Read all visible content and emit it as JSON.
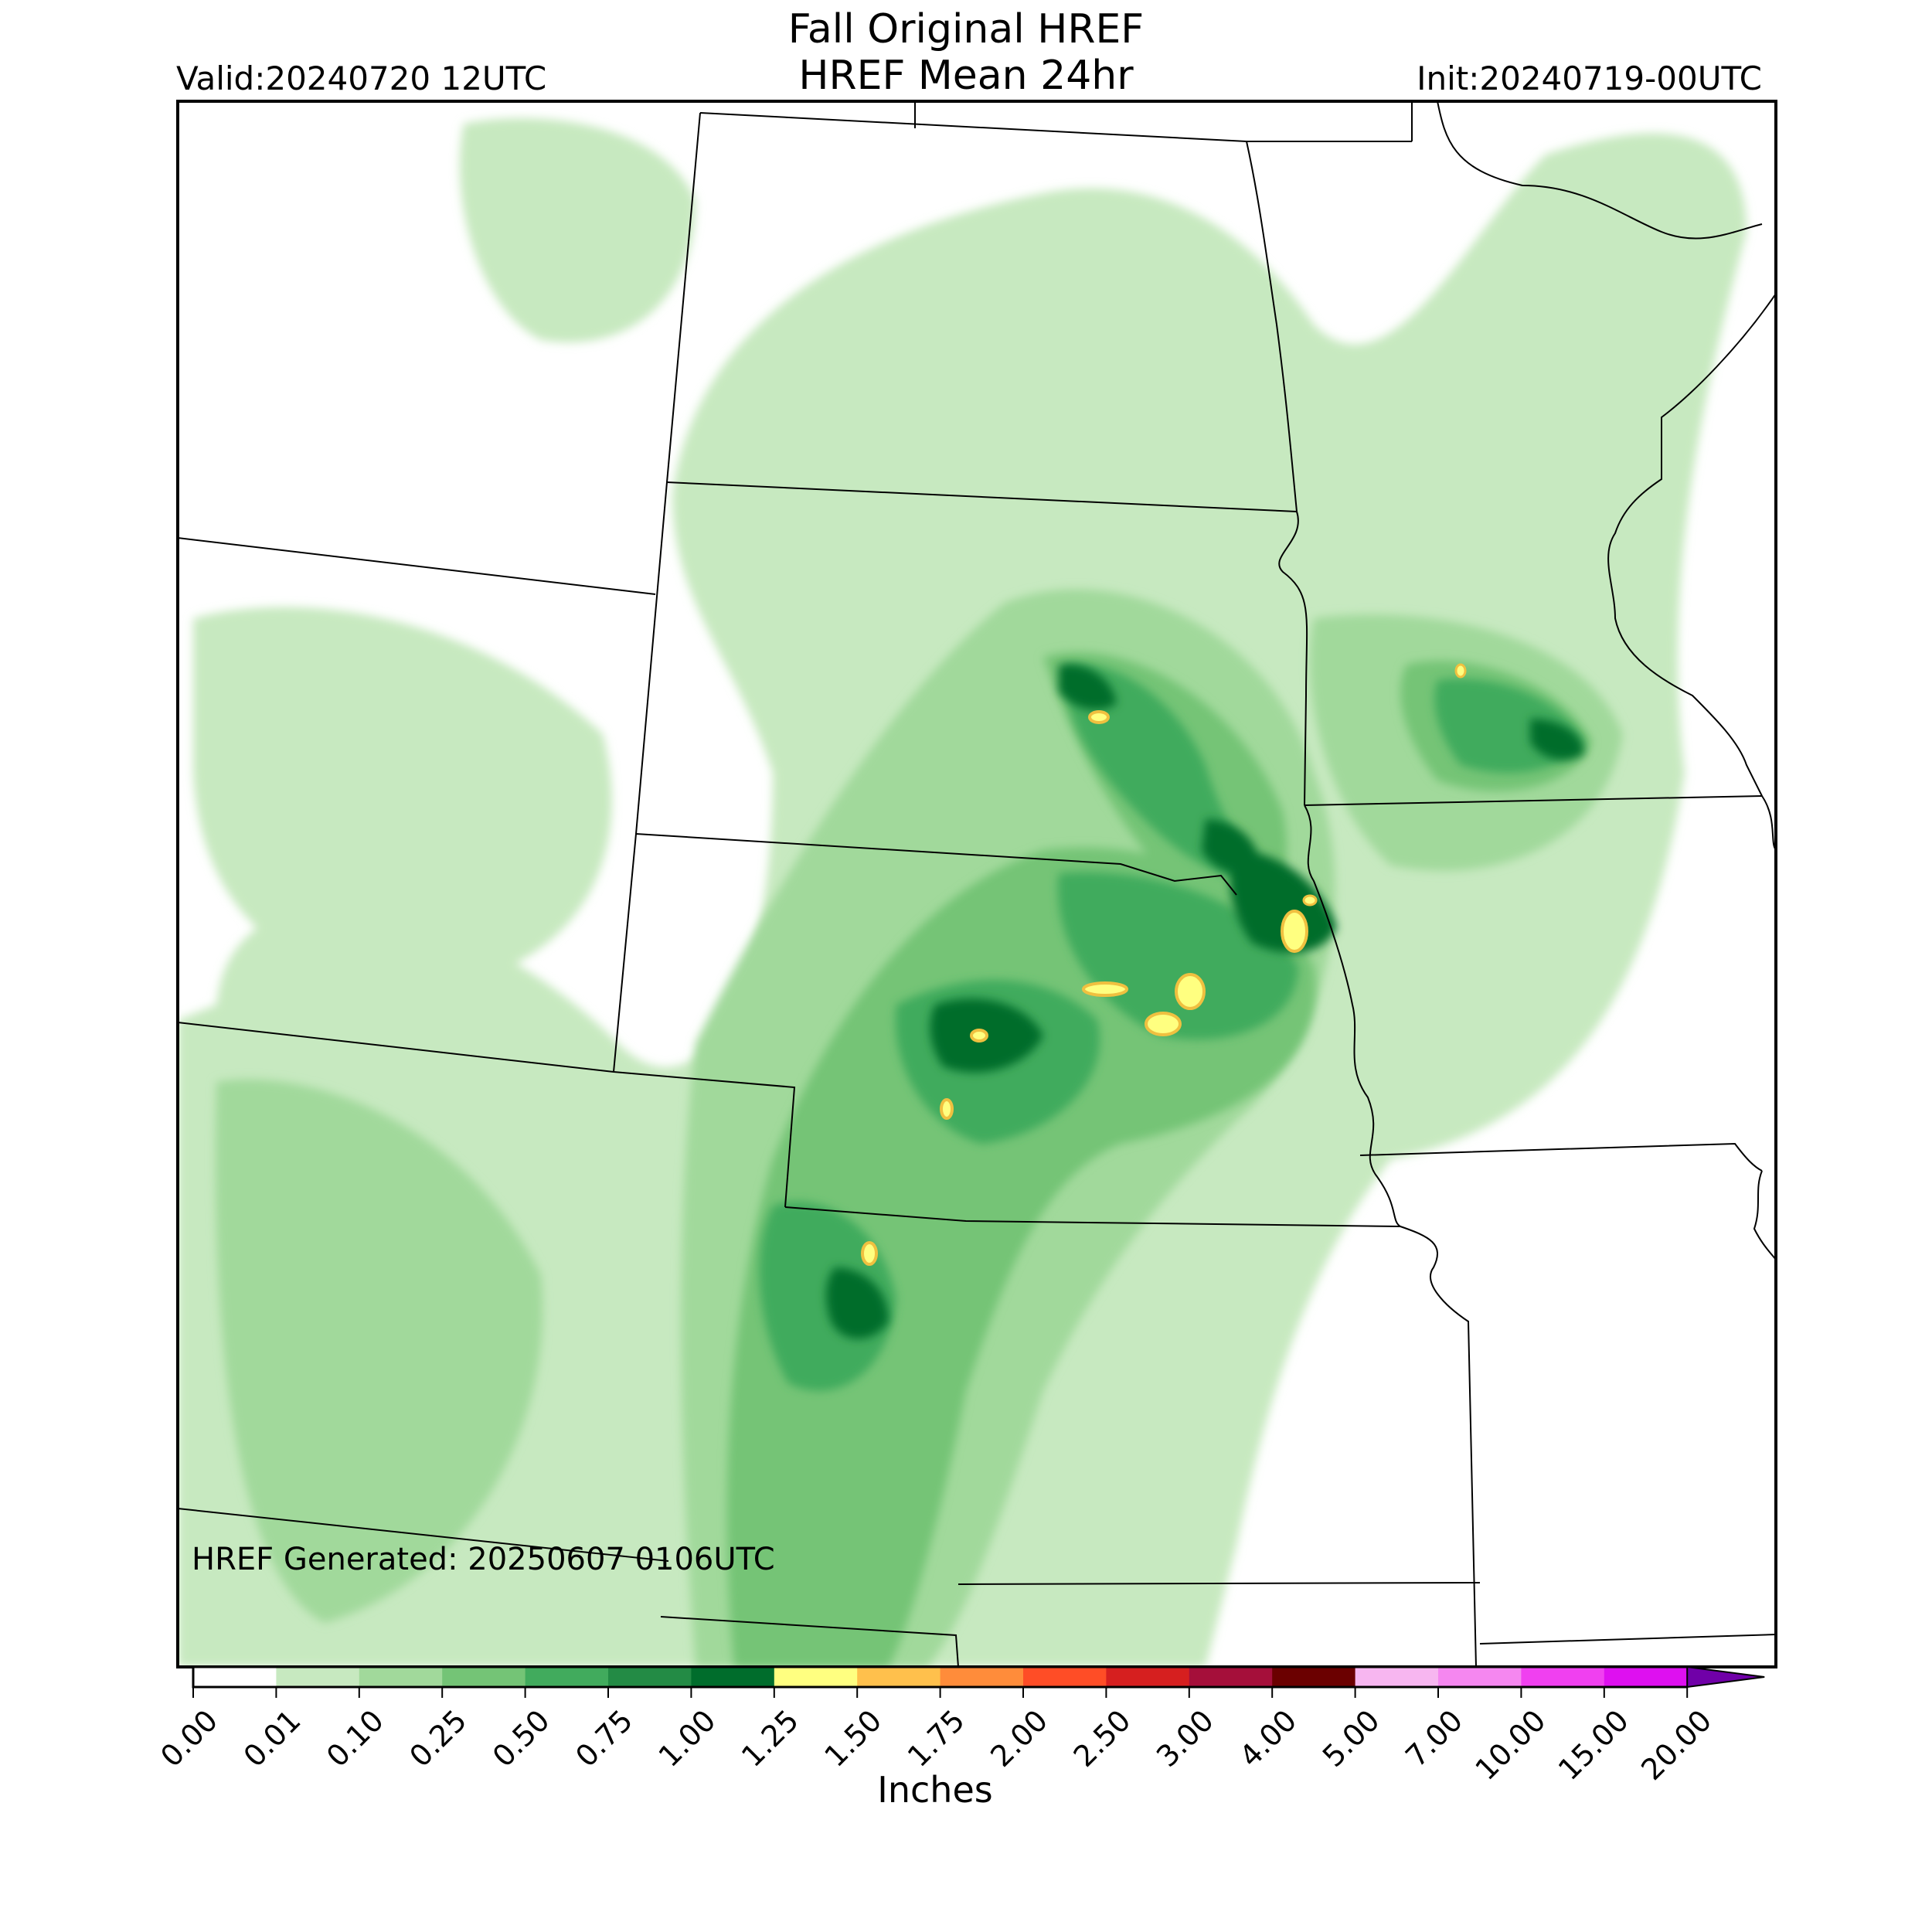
{
  "header": {
    "title_line1": "Fall Original HREF",
    "title_line2": "HREF Mean 24hr",
    "valid_label": "Valid:20240720 12UTC",
    "init_label": "Init:20240719-00UTC"
  },
  "map": {
    "generated_label": "HREF Generated: 20250607 0106UTC",
    "region": "Central Plains / Upper Midwest",
    "colors": {
      "trace": "#c7e9c0",
      "light": "#a1d99b",
      "medium": "#74c476",
      "moderate": "#41ab5d",
      "heavy": "#238b45",
      "very_heavy": "#006d2c",
      "extreme": "#ffff80",
      "extreme_edge": "#f0c040"
    }
  },
  "colorbar": {
    "units_label": "Inches",
    "ticks": [
      "0.00",
      "0.01",
      "0.10",
      "0.25",
      "0.50",
      "0.75",
      "1.00",
      "1.25",
      "1.50",
      "1.75",
      "2.00",
      "2.50",
      "3.00",
      "4.00",
      "5.00",
      "7.00",
      "10.00",
      "15.00",
      "20.00"
    ],
    "colors": [
      "#ffffff",
      "#c7e9c0",
      "#a1d99b",
      "#74c476",
      "#41ab5d",
      "#238b45",
      "#006d2c",
      "#ffff80",
      "#ffc04c",
      "#ff8c3a",
      "#ff4d26",
      "#d61f1f",
      "#a50f3a",
      "#6b0000",
      "#f7b6f0",
      "#f587f0",
      "#f040f0",
      "#de10f0",
      "#a000c8",
      "#7000a8"
    ]
  }
}
